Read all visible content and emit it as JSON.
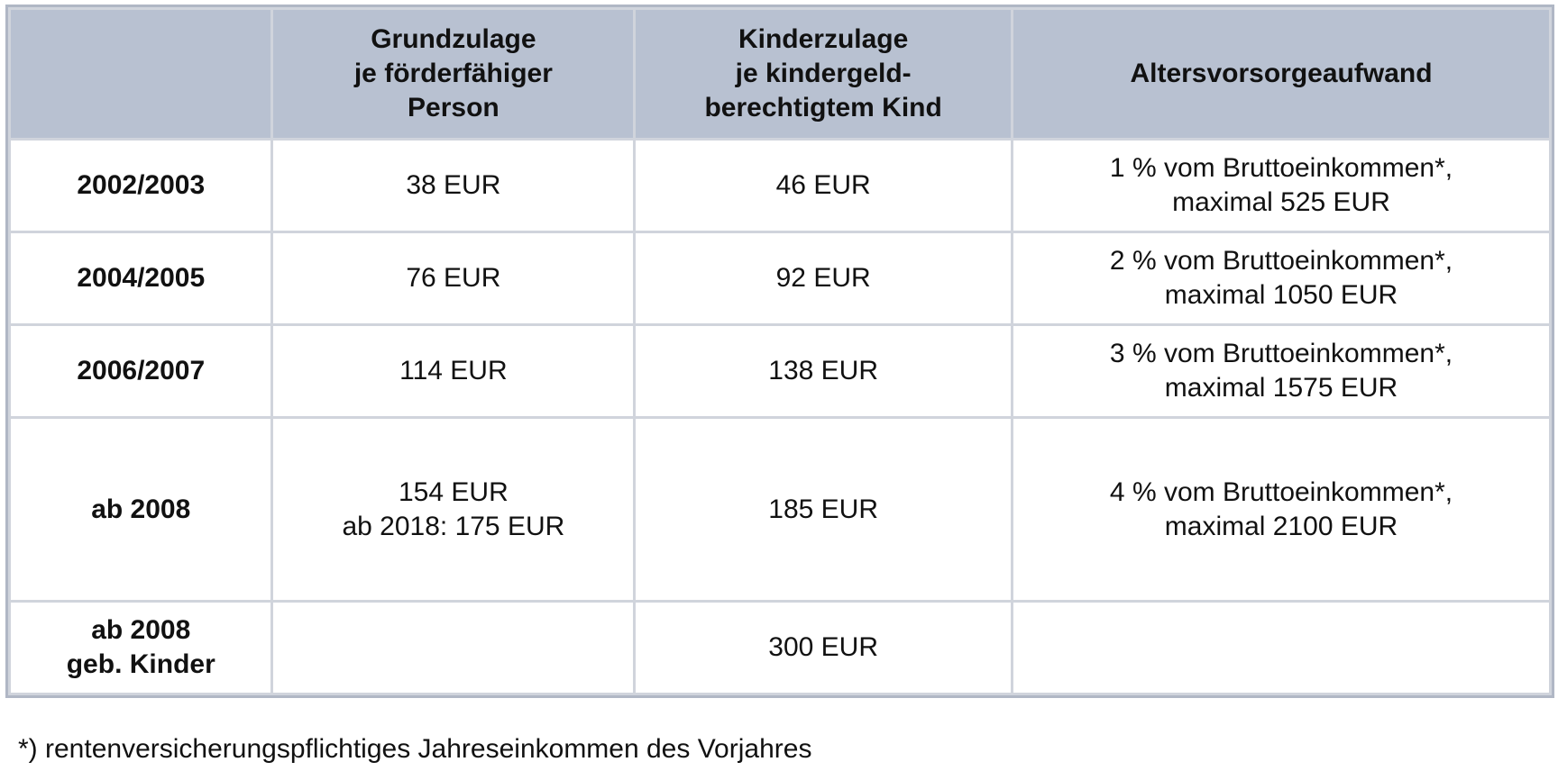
{
  "header": {
    "col0": "",
    "col1_lines": [
      "Grundzulage",
      "je förderfähiger",
      "Person"
    ],
    "col2_lines": [
      "Kinderzulage",
      "je kindergeld-",
      "berechtigtem Kind"
    ],
    "col3": "Altersvorsorgeaufwand"
  },
  "rows": [
    {
      "year_lines": [
        "2002/2003"
      ],
      "grund_lines": [
        "38 EUR"
      ],
      "kinder": "46 EUR",
      "aufwand_lines": [
        "1 % vom Bruttoeinkommen*,",
        "maximal 525 EUR"
      ]
    },
    {
      "year_lines": [
        "2004/2005"
      ],
      "grund_lines": [
        "76 EUR"
      ],
      "kinder": "92 EUR",
      "aufwand_lines": [
        "2 % vom Bruttoeinkommen*,",
        "maximal 1050 EUR"
      ]
    },
    {
      "year_lines": [
        "2006/2007"
      ],
      "grund_lines": [
        "114 EUR"
      ],
      "kinder": "138 EUR",
      "aufwand_lines": [
        "3 % vom Bruttoeinkommen*,",
        "maximal 1575 EUR"
      ]
    },
    {
      "year_lines": [
        "ab 2008"
      ],
      "grund_lines": [
        "154 EUR",
        "ab 2018: 175 EUR"
      ],
      "kinder": "185 EUR",
      "aufwand_lines": [
        "4 % vom Bruttoeinkommen*,",
        "maximal 2100 EUR"
      ]
    },
    {
      "year_lines": [
        "ab 2008",
        "geb. Kinder"
      ],
      "grund_lines": [
        ""
      ],
      "kinder": "300 EUR",
      "aufwand_lines": [
        ""
      ]
    }
  ],
  "footnote": "*) rentenversicherungspflichtiges Jahreseinkommen des Vorjahres"
}
